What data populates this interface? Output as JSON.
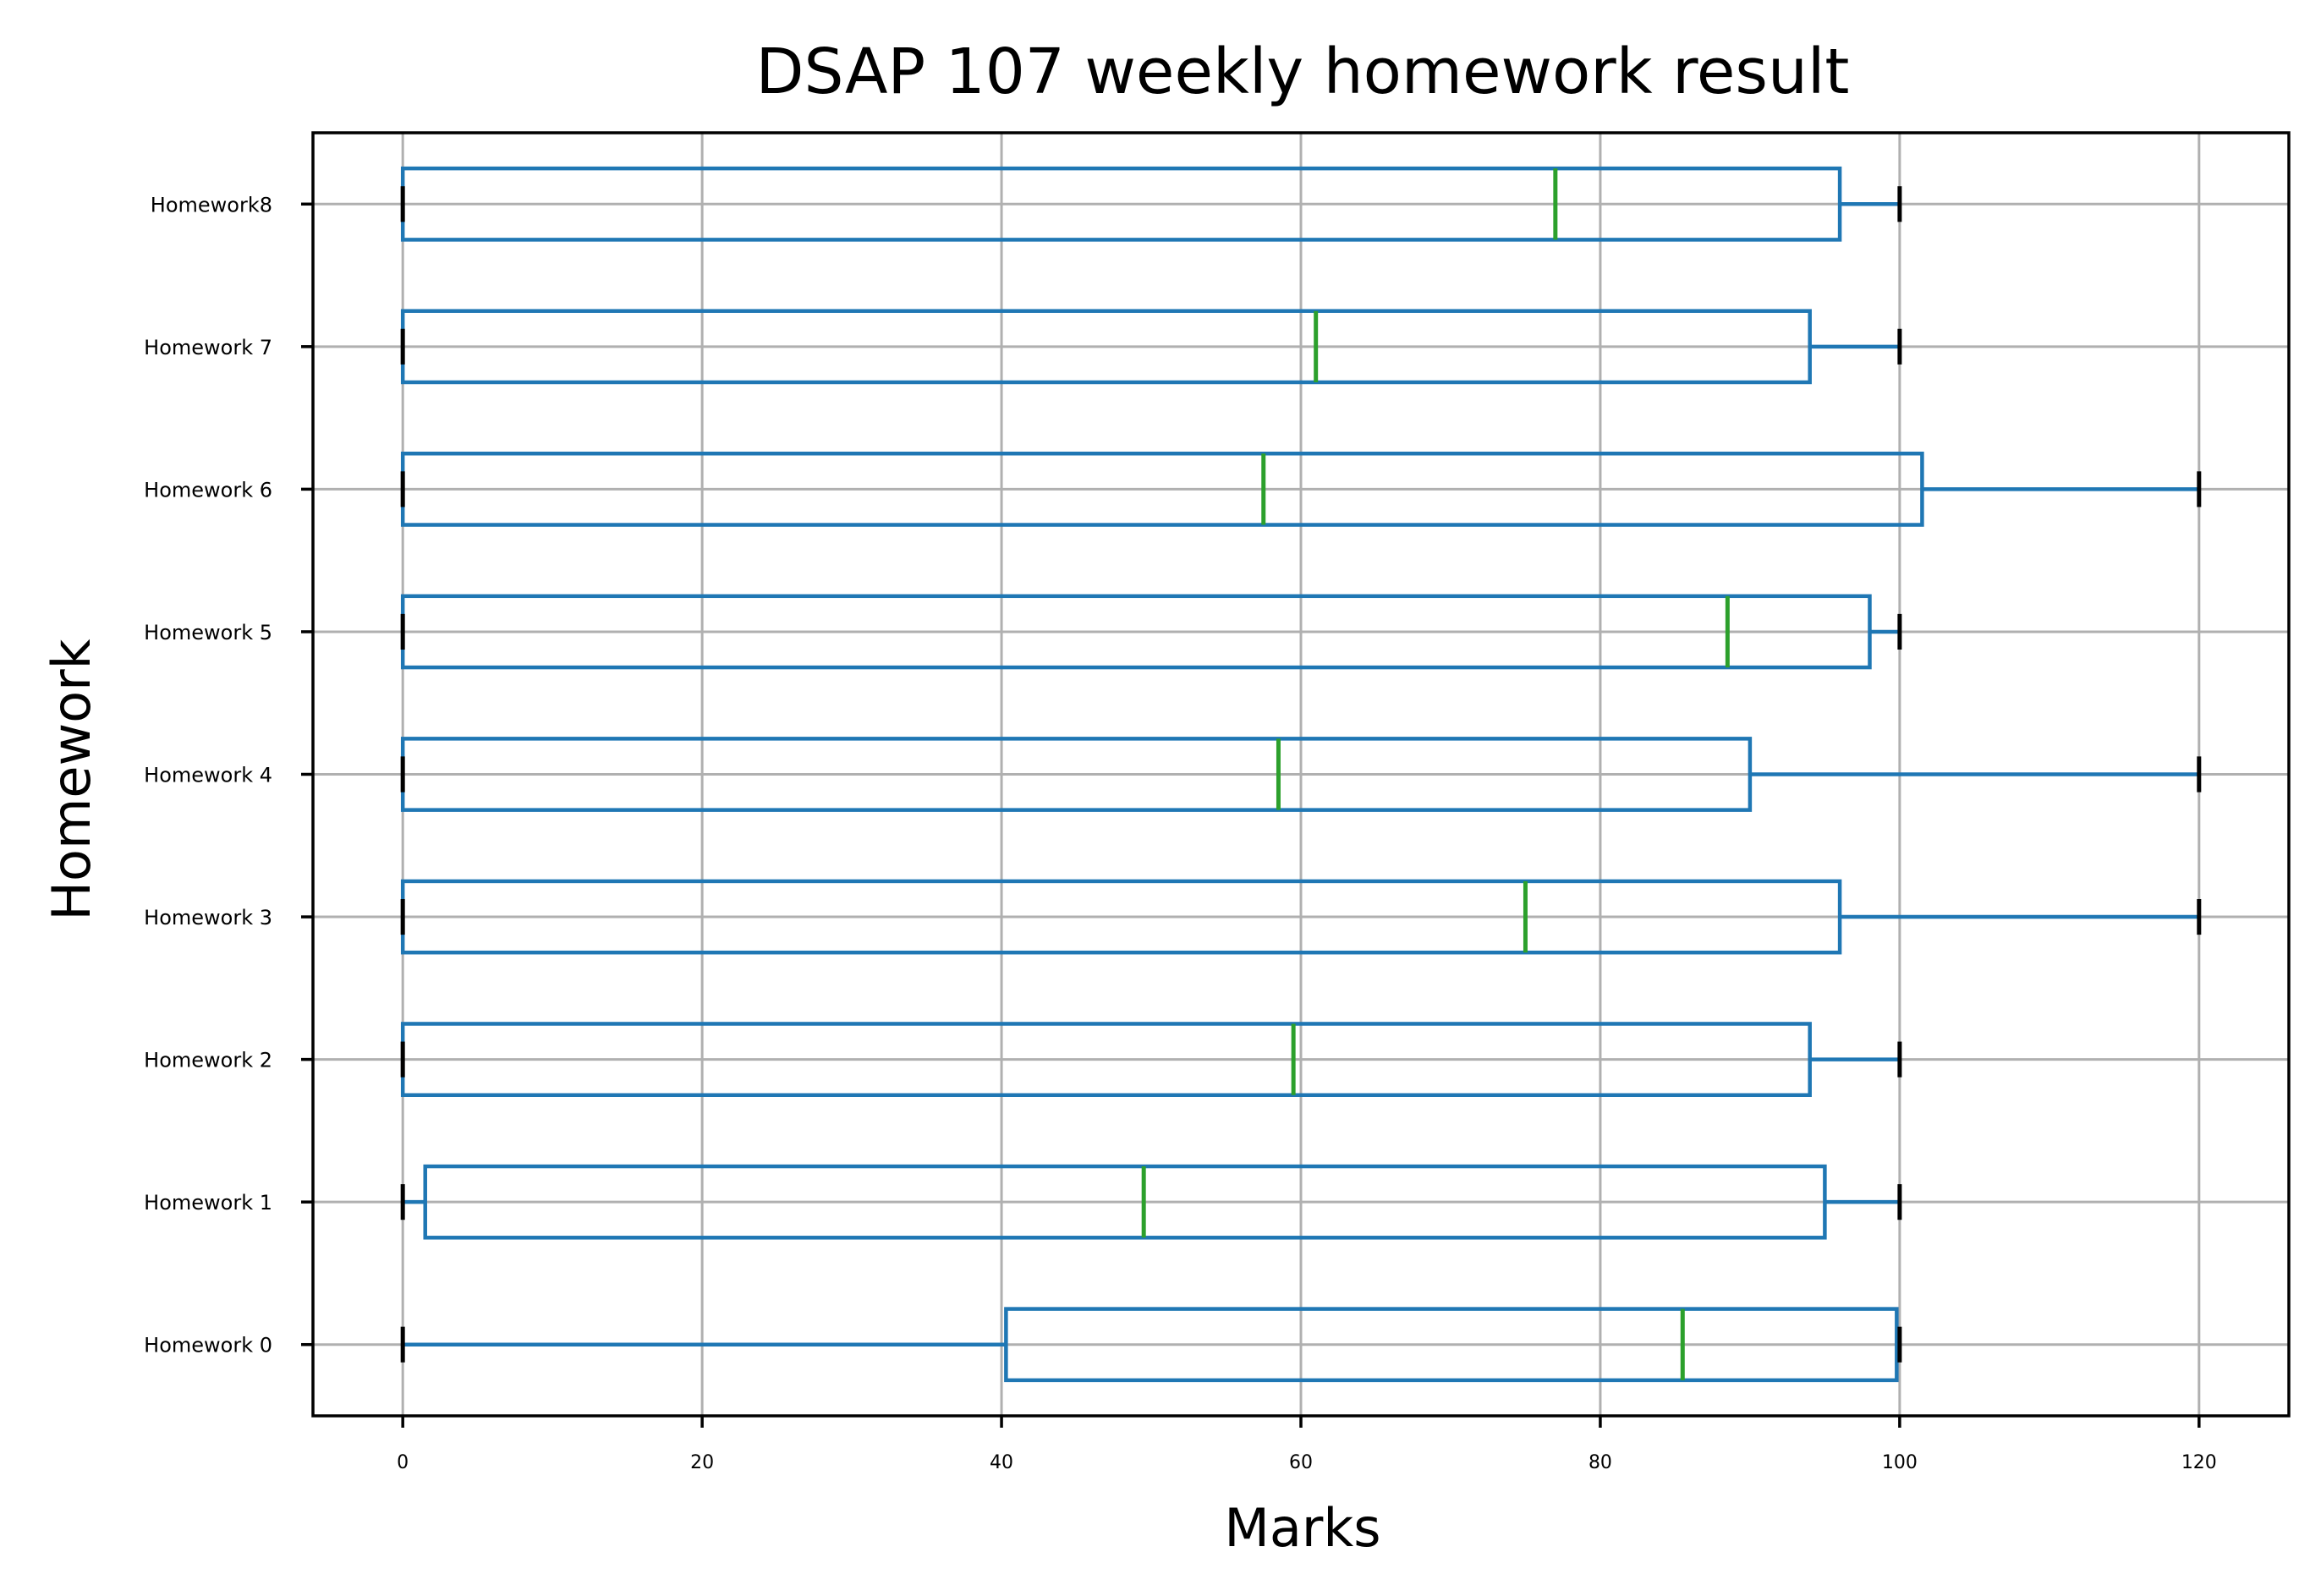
{
  "chart_data": {
    "type": "boxplot",
    "orientation": "horizontal",
    "title": "DSAP 107 weekly homework result",
    "xlabel": "Marks",
    "ylabel": "Homework",
    "xlim": [
      -6,
      126
    ],
    "xticks": [
      0,
      20,
      40,
      60,
      80,
      100,
      120
    ],
    "grid": true,
    "colors": {
      "box": "#1f77b4",
      "median": "#2ca02c",
      "cap": "#000000",
      "grid": "#b0b0b0"
    },
    "categories": [
      "Homework 0",
      "Homework 1",
      "Homework 2",
      "Homework 3",
      "Homework 4",
      "Homework 5",
      "Homework 6",
      "Homework 7",
      "Homework8"
    ],
    "series": [
      {
        "category": "Homework 0",
        "whislo": 0,
        "q1": 40.3,
        "med": 85.5,
        "q3": 99.8,
        "whishi": 100
      },
      {
        "category": "Homework 1",
        "whislo": 0,
        "q1": 1.5,
        "med": 49.5,
        "q3": 95,
        "whishi": 100
      },
      {
        "category": "Homework 2",
        "whislo": 0,
        "q1": 0,
        "med": 59.5,
        "q3": 94,
        "whishi": 100
      },
      {
        "category": "Homework 3",
        "whislo": 0,
        "q1": 0,
        "med": 75,
        "q3": 96,
        "whishi": 120
      },
      {
        "category": "Homework 4",
        "whislo": 0,
        "q1": 0,
        "med": 58.5,
        "q3": 90,
        "whishi": 120
      },
      {
        "category": "Homework 5",
        "whislo": 0,
        "q1": 0,
        "med": 88.5,
        "q3": 98,
        "whishi": 100
      },
      {
        "category": "Homework 6",
        "whislo": 0,
        "q1": 0,
        "med": 57.5,
        "q3": 101.5,
        "whishi": 120
      },
      {
        "category": "Homework 7",
        "whislo": 0,
        "q1": 0,
        "med": 61,
        "q3": 94,
        "whishi": 100
      },
      {
        "category": "Homework8",
        "whislo": 0,
        "q1": 0,
        "med": 77,
        "q3": 96,
        "whishi": 100
      }
    ]
  }
}
